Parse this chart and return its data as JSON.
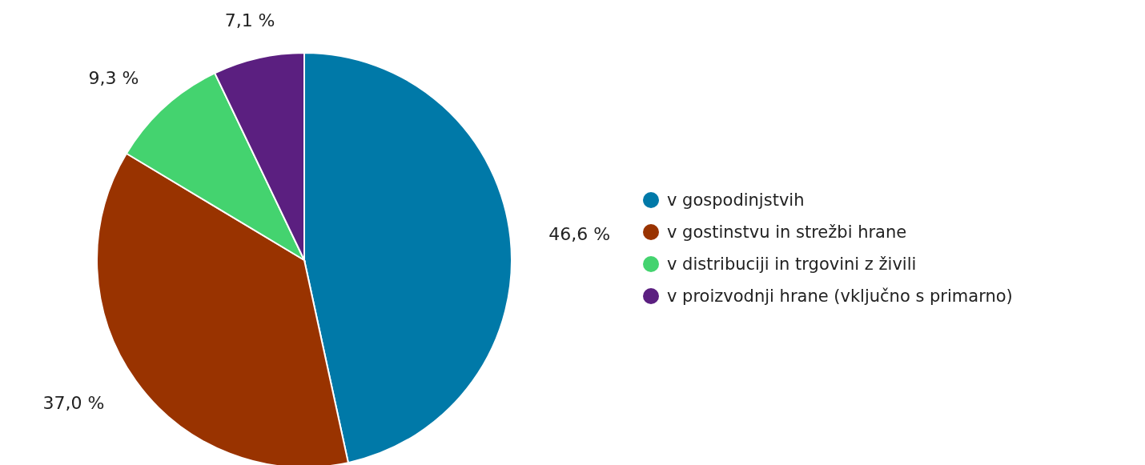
{
  "chart_data": {
    "type": "pie",
    "categories": [
      "v gospodinjstvih",
      "v gostinstvu in strežbi hrane",
      "v distribuciji in trgovini z živili",
      "v proizvodnji hrane (vključno s primarno)"
    ],
    "values": [
      46.6,
      37.0,
      9.3,
      7.1
    ],
    "value_labels": [
      "46,6 %",
      "37,0 %",
      "9,3 %",
      "7,1 %"
    ],
    "colors": [
      "#0079a8",
      "#993300",
      "#44d36f",
      "#5b1f80"
    ],
    "legend": "right"
  }
}
